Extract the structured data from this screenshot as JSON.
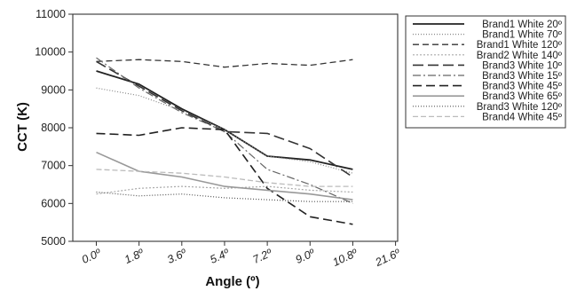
{
  "chart_data": {
    "type": "line",
    "xlabel": "Angle (º)",
    "ylabel": "CCT (K)",
    "x_tick_labels": [
      "0.0º",
      "1.8º",
      "3.6º",
      "5.4º",
      "7.2º",
      "9.0º",
      "10.8º",
      "21.6º"
    ],
    "x": [
      "0.0º",
      "1.8º",
      "3.6º",
      "5.4º",
      "7.2º",
      "9.0º",
      "10.8º"
    ],
    "ylim": [
      5000,
      11000
    ],
    "y_ticks": [
      5000,
      6000,
      7000,
      8000,
      9000,
      10000,
      11000
    ],
    "grid": false,
    "legend_position": "right",
    "series": [
      {
        "name": "Brand1 White 20º",
        "values": [
          9500,
          9150,
          8500,
          7950,
          7250,
          7150,
          6900
        ],
        "color": "#222222",
        "width": 1.8,
        "dash": ""
      },
      {
        "name": "Brand1 White 70º",
        "values": [
          9050,
          8850,
          8450,
          7950,
          7250,
          7100,
          6800
        ],
        "color": "#888888",
        "width": 1.2,
        "dash": "1 2"
      },
      {
        "name": "Brand1 White 120º",
        "values": [
          9750,
          9800,
          9750,
          9600,
          9700,
          9650,
          9800
        ],
        "color": "#333333",
        "width": 1.3,
        "dash": "7 4"
      },
      {
        "name": "Brand2 White 140º",
        "values": [
          6250,
          6400,
          6450,
          6400,
          6450,
          6350,
          6300
        ],
        "color": "#aaaaaa",
        "width": 1.2,
        "dash": "2 2"
      },
      {
        "name": "Brand3 White 10º",
        "values": [
          9750,
          9100,
          8450,
          7900,
          7850,
          7450,
          6700
        ],
        "color": "#333333",
        "width": 1.6,
        "dash": "12 5"
      },
      {
        "name": "Brand3 White 15º",
        "values": [
          9850,
          9050,
          8400,
          7900,
          6900,
          6500,
          6000
        ],
        "color": "#666666",
        "width": 1.2,
        "dash": "9 3 2 3"
      },
      {
        "name": "Brand3 White 45º",
        "values": [
          7850,
          7800,
          8000,
          7950,
          6400,
          5650,
          5450
        ],
        "color": "#222222",
        "width": 1.6,
        "dash": "10 5"
      },
      {
        "name": "Brand3 White 65º",
        "values": [
          7350,
          6850,
          6700,
          6450,
          6350,
          6250,
          6100
        ],
        "color": "#999999",
        "width": 1.6,
        "dash": ""
      },
      {
        "name": "Brand3 White 120º",
        "values": [
          6300,
          6200,
          6250,
          6150,
          6100,
          6050,
          6050
        ],
        "color": "#555555",
        "width": 1.2,
        "dash": "1 2"
      },
      {
        "name": "Brand4 White 45º",
        "values": [
          6900,
          6850,
          6800,
          6700,
          6550,
          6450,
          6450
        ],
        "color": "#bbbbbb",
        "width": 1.3,
        "dash": "6 3"
      }
    ]
  }
}
